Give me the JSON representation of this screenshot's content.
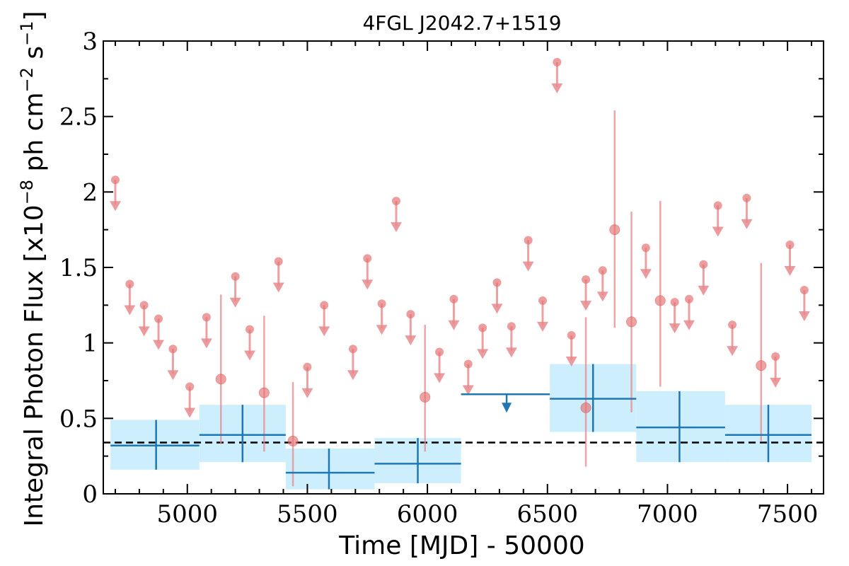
{
  "chart_data": {
    "type": "scatter",
    "title": "4FGL J2042.7+1519",
    "xlabel": "Time [MJD] - 50000",
    "ylabel": "Integral Photon Flux [x10",
    "ylabel_exp1": "−8",
    "ylabel_mid": " ph cm",
    "ylabel_exp2": "−2",
    "ylabel_mid2": " s",
    "ylabel_exp3": "−1",
    "ylabel_end": "]",
    "xlim": [
      4650,
      7650
    ],
    "ylim": [
      0,
      3
    ],
    "xticks": [
      5000,
      5500,
      6000,
      6500,
      7000,
      7500
    ],
    "yticks": [
      0,
      0.5,
      1,
      1.5,
      2,
      2.5,
      3
    ],
    "xtick_labels": [
      "5000",
      "5500",
      "6000",
      "6500",
      "7000",
      "7500"
    ],
    "ytick_labels": [
      "0",
      "0.5",
      "1",
      "1.5",
      "2",
      "2.5",
      "3"
    ],
    "grid": false,
    "reference_line": {
      "y": 0.34,
      "style": "dashed"
    },
    "colors": {
      "short_bin": "#e8898c",
      "short_bin_dot": "#e57373",
      "long_bin": "#1f77b4",
      "long_bin_band": "#cdeefd",
      "reference": "#000000"
    },
    "series": [
      {
        "bins": "short",
        "upper_limits": [
          {
            "x": 4700,
            "y": 2.08
          },
          {
            "x": 4760,
            "y": 1.39
          },
          {
            "x": 4820,
            "y": 1.25
          },
          {
            "x": 4880,
            "y": 1.16
          },
          {
            "x": 4940,
            "y": 0.96
          },
          {
            "x": 5010,
            "y": 0.71
          },
          {
            "x": 5080,
            "y": 1.17
          },
          {
            "x": 5200,
            "y": 1.44
          },
          {
            "x": 5260,
            "y": 1.09
          },
          {
            "x": 5380,
            "y": 1.54
          },
          {
            "x": 5500,
            "y": 0.84
          },
          {
            "x": 5570,
            "y": 1.25
          },
          {
            "x": 5690,
            "y": 0.96
          },
          {
            "x": 5750,
            "y": 1.56
          },
          {
            "x": 5810,
            "y": 1.26
          },
          {
            "x": 5870,
            "y": 1.94
          },
          {
            "x": 5930,
            "y": 1.19
          },
          {
            "x": 6050,
            "y": 0.94
          },
          {
            "x": 6110,
            "y": 1.29
          },
          {
            "x": 6170,
            "y": 0.86
          },
          {
            "x": 6230,
            "y": 1.1
          },
          {
            "x": 6290,
            "y": 1.4
          },
          {
            "x": 6350,
            "y": 1.11
          },
          {
            "x": 6420,
            "y": 1.68
          },
          {
            "x": 6480,
            "y": 1.28
          },
          {
            "x": 6540,
            "y": 2.86
          },
          {
            "x": 6600,
            "y": 1.05
          },
          {
            "x": 6660,
            "y": 1.42
          },
          {
            "x": 6730,
            "y": 1.48
          },
          {
            "x": 6910,
            "y": 1.63
          },
          {
            "x": 7030,
            "y": 1.27
          },
          {
            "x": 7090,
            "y": 1.29
          },
          {
            "x": 7150,
            "y": 1.52
          },
          {
            "x": 7210,
            "y": 1.91
          },
          {
            "x": 7270,
            "y": 1.12
          },
          {
            "x": 7330,
            "y": 1.96
          },
          {
            "x": 7450,
            "y": 0.91
          },
          {
            "x": 7510,
            "y": 1.65
          },
          {
            "x": 7570,
            "y": 1.35
          }
        ],
        "detections": [
          {
            "x": 5140,
            "y": 0.76,
            "ylo": 0.33,
            "yhi": 1.32
          },
          {
            "x": 5320,
            "y": 0.67,
            "ylo": 0.28,
            "yhi": 1.18
          },
          {
            "x": 5440,
            "y": 0.35,
            "ylo": 0.05,
            "yhi": 0.74
          },
          {
            "x": 5990,
            "y": 0.64,
            "ylo": 0.28,
            "yhi": 1.12
          },
          {
            "x": 6660,
            "y": 0.57,
            "ylo": 0.18,
            "yhi": 1.17
          },
          {
            "x": 6780,
            "y": 1.75,
            "ylo": 1.1,
            "yhi": 2.54
          },
          {
            "x": 6850,
            "y": 1.14,
            "ylo": 0.54,
            "yhi": 1.87
          },
          {
            "x": 6970,
            "y": 1.28,
            "ylo": 0.71,
            "yhi": 1.94
          },
          {
            "x": 7390,
            "y": 0.85,
            "ylo": 0.35,
            "yhi": 1.53
          }
        ]
      },
      {
        "bins": "long",
        "detections": [
          {
            "x": 4870,
            "x0": 4680,
            "x1": 5050,
            "y": 0.32,
            "ylo": 0.16,
            "yhi": 0.49
          },
          {
            "x": 5230,
            "x0": 5050,
            "x1": 5410,
            "y": 0.39,
            "ylo": 0.21,
            "yhi": 0.59
          },
          {
            "x": 5590,
            "x0": 5410,
            "x1": 5780,
            "y": 0.14,
            "ylo": 0.03,
            "yhi": 0.3
          },
          {
            "x": 5960,
            "x0": 5780,
            "x1": 6140,
            "y": 0.2,
            "ylo": 0.07,
            "yhi": 0.37
          },
          {
            "x": 6690,
            "x0": 6510,
            "x1": 6870,
            "y": 0.63,
            "ylo": 0.41,
            "yhi": 0.86
          },
          {
            "x": 7050,
            "x0": 6870,
            "x1": 7240,
            "y": 0.44,
            "ylo": 0.21,
            "yhi": 0.68
          },
          {
            "x": 7420,
            "x0": 7240,
            "x1": 7600,
            "y": 0.39,
            "ylo": 0.21,
            "yhi": 0.59
          }
        ],
        "upper_limits": [
          {
            "x": 6330,
            "x0": 6140,
            "x1": 6510,
            "y": 0.66
          }
        ]
      }
    ]
  }
}
